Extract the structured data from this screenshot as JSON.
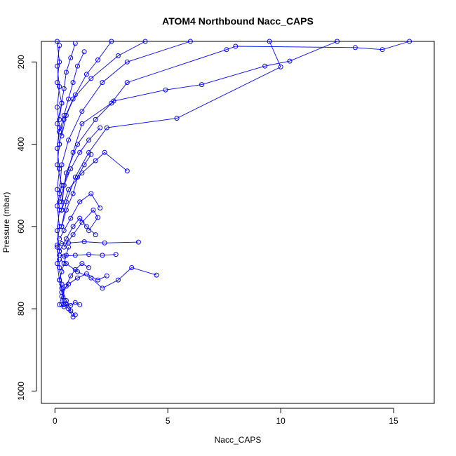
{
  "chart_data": {
    "type": "line",
    "title": "ATOM4 Northbound Nacc_CAPS",
    "xlabel": "Nacc_CAPS",
    "ylabel": "Pressure (mbar)",
    "xlim": [
      -0.6,
      16.8
    ],
    "ylim": [
      1030,
      150
    ],
    "y_reversed": true,
    "x_ticks": [
      0,
      5,
      10,
      15
    ],
    "y_ticks": [
      200,
      400,
      600,
      800,
      1000
    ],
    "grid": false,
    "marker": "open-circle",
    "series_color": "#0000ff",
    "series": [
      {
        "values": [
          [
            0.1,
            150
          ],
          [
            0.2,
            200
          ],
          [
            0.1,
            250
          ],
          [
            0.3,
            300
          ],
          [
            0.1,
            350
          ],
          [
            0.2,
            400
          ],
          [
            0.1,
            450
          ],
          [
            0.3,
            500
          ],
          [
            0.1,
            550
          ],
          [
            0.2,
            600
          ],
          [
            0.1,
            650
          ],
          [
            0.2,
            700
          ],
          [
            0.3,
            740
          ],
          [
            0.4,
            780
          ],
          [
            0.6,
            800
          ],
          [
            0.8,
            820
          ]
        ]
      },
      {
        "values": [
          [
            0.2,
            160
          ],
          [
            0.1,
            210
          ],
          [
            0.2,
            260
          ],
          [
            0.1,
            310
          ],
          [
            0.2,
            360
          ],
          [
            0.1,
            410
          ],
          [
            0.2,
            460
          ],
          [
            0.1,
            510
          ],
          [
            0.2,
            560
          ],
          [
            0.1,
            610
          ],
          [
            0.2,
            660
          ],
          [
            0.1,
            690
          ],
          [
            0.2,
            730
          ],
          [
            0.3,
            760
          ],
          [
            0.4,
            790
          ]
        ]
      },
      {
        "values": [
          [
            15.7,
            150
          ],
          [
            14.5,
            170
          ],
          [
            13.3,
            165
          ],
          [
            8.0,
            162
          ],
          [
            7.6,
            170
          ],
          [
            3.2,
            250
          ],
          [
            2.5,
            300
          ],
          [
            1.2,
            350
          ],
          [
            0.8,
            420
          ],
          [
            0.4,
            500
          ],
          [
            0.3,
            560
          ]
        ]
      },
      {
        "values": [
          [
            12.5,
            150
          ],
          [
            10.4,
            198
          ],
          [
            9.3,
            210
          ],
          [
            6.5,
            255
          ],
          [
            4.9,
            268
          ],
          [
            2.6,
            295
          ],
          [
            1.8,
            340
          ],
          [
            1.0,
            400
          ],
          [
            0.5,
            470
          ],
          [
            0.3,
            540
          ]
        ]
      },
      {
        "values": [
          [
            9.5,
            150
          ],
          [
            10.0,
            212
          ],
          [
            5.4,
            337
          ],
          [
            2.3,
            360
          ],
          [
            1.5,
            420
          ],
          [
            0.9,
            480
          ],
          [
            0.5,
            540
          ],
          [
            0.3,
            600
          ]
        ]
      },
      {
        "values": [
          [
            6.0,
            150
          ],
          [
            3.2,
            200
          ],
          [
            2.1,
            250
          ],
          [
            1.2,
            320
          ],
          [
            0.6,
            390
          ],
          [
            0.3,
            450
          ],
          [
            0.2,
            520
          ]
        ]
      },
      {
        "values": [
          [
            4.0,
            150
          ],
          [
            2.8,
            185
          ],
          [
            1.6,
            240
          ],
          [
            0.8,
            290
          ],
          [
            0.4,
            340
          ],
          [
            0.2,
            400
          ]
        ]
      },
      {
        "values": [
          [
            2.5,
            150
          ],
          [
            1.9,
            195
          ],
          [
            1.4,
            230
          ],
          [
            0.9,
            280
          ],
          [
            0.5,
            330
          ],
          [
            0.3,
            380
          ]
        ]
      },
      {
        "values": [
          [
            3.2,
            465
          ],
          [
            2.2,
            420
          ],
          [
            1.8,
            440
          ],
          [
            1.2,
            470
          ],
          [
            0.6,
            510
          ],
          [
            0.3,
            560
          ]
        ]
      },
      {
        "values": [
          [
            2.0,
            555
          ],
          [
            1.6,
            520
          ],
          [
            1.1,
            540
          ],
          [
            0.7,
            580
          ],
          [
            0.4,
            610
          ],
          [
            0.2,
            630
          ]
        ]
      },
      {
        "values": [
          [
            3.7,
            638
          ],
          [
            2.2,
            640
          ],
          [
            1.3,
            637
          ],
          [
            0.6,
            640
          ],
          [
            0.3,
            642
          ],
          [
            0.1,
            645
          ]
        ]
      },
      {
        "values": [
          [
            2.7,
            668
          ],
          [
            2.1,
            670
          ],
          [
            1.5,
            668
          ],
          [
            0.9,
            670
          ],
          [
            0.4,
            672
          ],
          [
            0.2,
            670
          ]
        ]
      },
      {
        "values": [
          [
            4.5,
            718
          ],
          [
            3.4,
            700
          ],
          [
            2.8,
            730
          ],
          [
            2.1,
            750
          ],
          [
            1.6,
            725
          ],
          [
            1.0,
            710
          ],
          [
            0.5,
            690
          ],
          [
            0.2,
            680
          ]
        ]
      },
      {
        "values": [
          [
            1.1,
            790
          ],
          [
            0.9,
            785
          ],
          [
            0.7,
            792
          ],
          [
            0.5,
            788
          ],
          [
            0.4,
            795
          ],
          [
            0.3,
            790
          ]
        ]
      },
      {
        "values": [
          [
            1.5,
            610
          ],
          [
            1.9,
            578
          ],
          [
            1.7,
            560
          ],
          [
            1.2,
            590
          ],
          [
            0.8,
            620
          ],
          [
            0.4,
            650
          ]
        ]
      },
      {
        "values": [
          [
            2.3,
            720
          ],
          [
            1.9,
            730
          ],
          [
            1.4,
            715
          ],
          [
            1.0,
            725
          ],
          [
            0.6,
            740
          ],
          [
            0.3,
            760
          ]
        ]
      },
      {
        "values": [
          [
            1.8,
            620
          ],
          [
            1.4,
            600
          ],
          [
            1.1,
            580
          ],
          [
            0.8,
            600
          ],
          [
            0.5,
            630
          ],
          [
            0.2,
            660
          ]
        ]
      },
      {
        "values": [
          [
            1.6,
            425
          ],
          [
            1.3,
            450
          ],
          [
            1.0,
            480
          ],
          [
            0.8,
            520
          ],
          [
            0.5,
            560
          ],
          [
            0.3,
            600
          ]
        ]
      },
      {
        "values": [
          [
            2.0,
            360
          ],
          [
            1.5,
            390
          ],
          [
            1.1,
            420
          ],
          [
            0.7,
            460
          ],
          [
            0.4,
            500
          ],
          [
            0.2,
            540
          ]
        ]
      },
      {
        "values": [
          [
            1.3,
            175
          ],
          [
            1.0,
            210
          ],
          [
            0.8,
            250
          ],
          [
            0.6,
            290
          ],
          [
            0.4,
            330
          ],
          [
            0.2,
            370
          ]
        ]
      },
      {
        "values": [
          [
            0.9,
            155
          ],
          [
            0.7,
            190
          ],
          [
            0.5,
            225
          ],
          [
            0.4,
            265
          ],
          [
            0.3,
            300
          ],
          [
            0.2,
            340
          ]
        ]
      },
      {
        "values": [
          [
            1.5,
            700
          ],
          [
            1.2,
            690
          ],
          [
            0.9,
            705
          ],
          [
            0.7,
            720
          ],
          [
            0.5,
            745
          ],
          [
            0.3,
            770
          ],
          [
            0.2,
            790
          ]
        ]
      },
      {
        "values": [
          [
            0.6,
            650
          ],
          [
            0.5,
            670
          ],
          [
            0.4,
            690
          ],
          [
            0.3,
            710
          ],
          [
            0.2,
            730
          ],
          [
            0.3,
            750
          ],
          [
            0.5,
            780
          ],
          [
            0.7,
            805
          ],
          [
            0.9,
            815
          ]
        ]
      }
    ]
  }
}
